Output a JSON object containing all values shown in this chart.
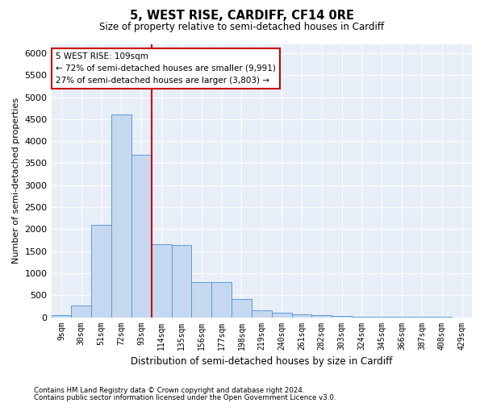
{
  "title": "5, WEST RISE, CARDIFF, CF14 0RE",
  "subtitle": "Size of property relative to semi-detached houses in Cardiff",
  "xlabel": "Distribution of semi-detached houses by size in Cardiff",
  "ylabel": "Number of semi-detached properties",
  "footnote1": "Contains HM Land Registry data © Crown copyright and database right 2024.",
  "footnote2": "Contains public sector information licensed under the Open Government Licence v3.0.",
  "annotation_line1": "5 WEST RISE: 109sqm",
  "annotation_line2": "← 72% of semi-detached houses are smaller (9,991)",
  "annotation_line3": "27% of semi-detached houses are larger (3,803) →",
  "bin_labels": [
    "9sqm",
    "30sqm",
    "51sqm",
    "72sqm",
    "93sqm",
    "114sqm",
    "135sqm",
    "156sqm",
    "177sqm",
    "198sqm",
    "219sqm",
    "240sqm",
    "261sqm",
    "282sqm",
    "303sqm",
    "324sqm",
    "345sqm",
    "366sqm",
    "387sqm",
    "408sqm",
    "429sqm"
  ],
  "bar_values": [
    50,
    260,
    2100,
    4600,
    3700,
    1650,
    1640,
    800,
    790,
    420,
    160,
    100,
    70,
    40,
    30,
    15,
    10,
    5,
    3,
    2,
    1
  ],
  "bar_color": "#c5d8f0",
  "bar_edge_color": "#5b9bd5",
  "vline_color": "#cc0000",
  "annotation_box_color": "#ffffff",
  "annotation_box_edge": "#cc0000",
  "ylim": [
    0,
    6200
  ],
  "yticks": [
    0,
    500,
    1000,
    1500,
    2000,
    2500,
    3000,
    3500,
    4000,
    4500,
    5000,
    5500,
    6000
  ],
  "fig_bg_color": "#ffffff",
  "plot_bg_color": "#e8eef8"
}
